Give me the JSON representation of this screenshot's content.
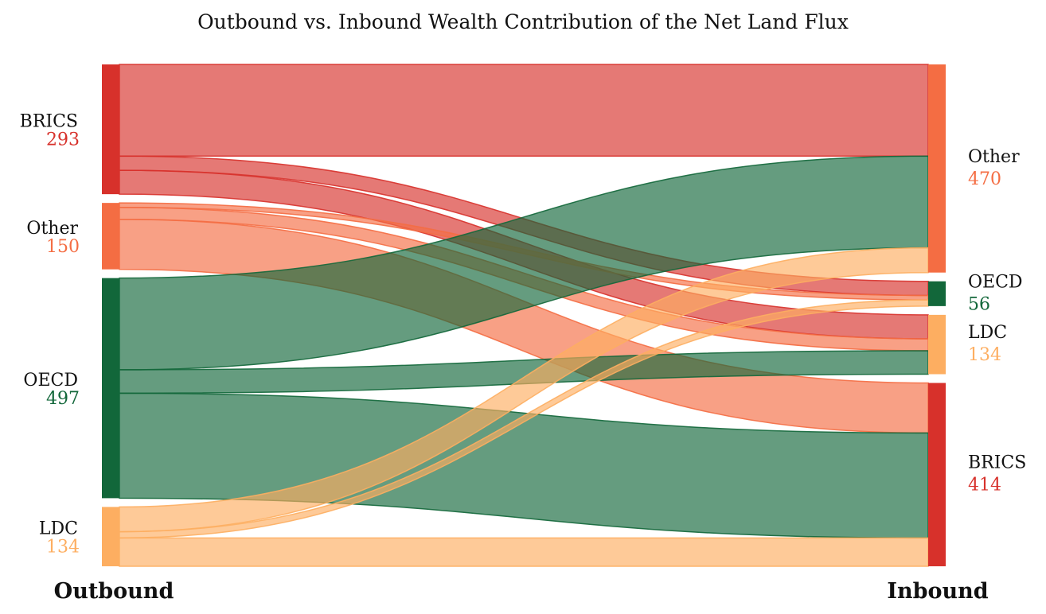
{
  "chart_data": {
    "type": "sankey",
    "title": "Outbound vs. Inbound Wealth Contribution of the Net Land Flux",
    "left_label": "Outbound",
    "right_label": "Inbound",
    "colors": {
      "BRICS": "#d7312b",
      "Other": "#f46d43",
      "OECD": "#12673a",
      "LDC": "#fdae61"
    },
    "sources": [
      {
        "name": "BRICS",
        "value": 293
      },
      {
        "name": "Other",
        "value": 150
      },
      {
        "name": "OECD",
        "value": 497
      },
      {
        "name": "LDC",
        "value": 134
      }
    ],
    "targets": [
      {
        "name": "Other",
        "value": 470
      },
      {
        "name": "OECD",
        "value": 56
      },
      {
        "name": "LDC",
        "value": 134
      },
      {
        "name": "BRICS",
        "value": 414
      }
    ],
    "flows": [
      {
        "source": "BRICS",
        "target": "Other",
        "value": 207
      },
      {
        "source": "BRICS",
        "target": "OECD",
        "value": 32
      },
      {
        "source": "BRICS",
        "target": "LDC",
        "value": 54
      },
      {
        "source": "Other",
        "target": "OECD",
        "value": 10
      },
      {
        "source": "Other",
        "target": "LDC",
        "value": 27
      },
      {
        "source": "Other",
        "target": "BRICS",
        "value": 113
      },
      {
        "source": "OECD",
        "target": "Other",
        "value": 207
      },
      {
        "source": "OECD",
        "target": "LDC",
        "value": 53
      },
      {
        "source": "OECD",
        "target": "BRICS",
        "value": 237
      },
      {
        "source": "LDC",
        "target": "Other",
        "value": 56
      },
      {
        "source": "LDC",
        "target": "OECD",
        "value": 14
      },
      {
        "source": "LDC",
        "target": "BRICS",
        "value": 64
      }
    ]
  }
}
